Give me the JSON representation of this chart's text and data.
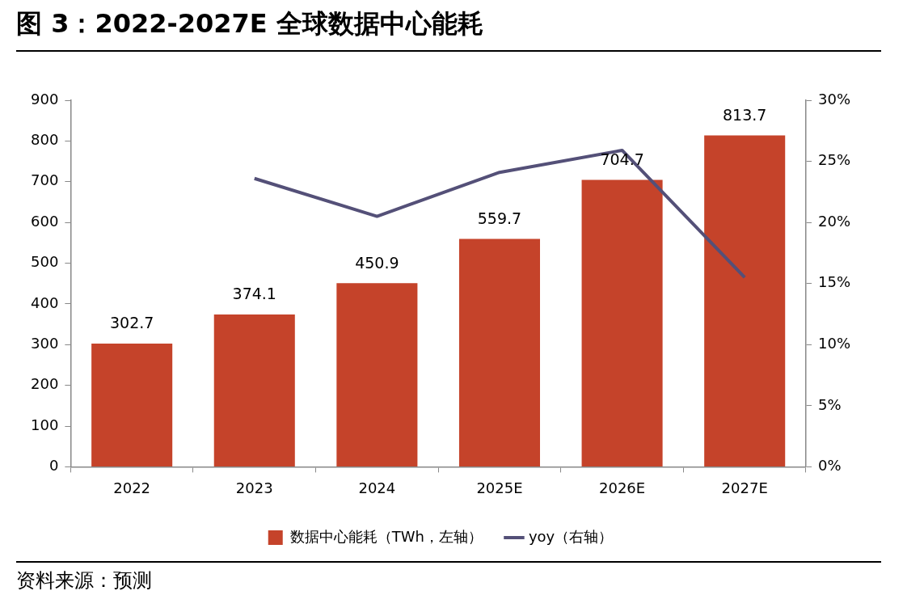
{
  "chart_data": {
    "type": "bar",
    "title": "图 3：2022-2027E 全球数据中心能耗",
    "categories": [
      "2022",
      "2023",
      "2024",
      "2025E",
      "2026E",
      "2027E"
    ],
    "series": [
      {
        "name": "数据中心能耗（TWh，左轴）",
        "color": "#c5432a",
        "values": [
          302.7,
          374.1,
          450.9,
          559.7,
          704.7,
          813.7
        ],
        "value_labels": [
          "302.7",
          "374.1",
          "450.9",
          "559.7",
          "704.7",
          "813.7"
        ]
      },
      {
        "name": "yoy（右轴）",
        "type": "line",
        "axis": "y2",
        "color": "#545078",
        "values": [
          null,
          23.6,
          20.5,
          24.1,
          25.9,
          15.5
        ]
      }
    ],
    "ylim": [
      0,
      900
    ],
    "yticks": [
      0,
      100,
      200,
      300,
      400,
      500,
      600,
      700,
      800,
      900
    ],
    "y2lim": [
      0,
      30
    ],
    "y2ticks": [
      {
        "value": 0,
        "label": "0%"
      },
      {
        "value": 5,
        "label": "5%"
      },
      {
        "value": 10,
        "label": "10%"
      },
      {
        "value": 15,
        "label": "15%"
      },
      {
        "value": 20,
        "label": "20%"
      },
      {
        "value": 25,
        "label": "25%"
      },
      {
        "value": 30,
        "label": "30%"
      }
    ],
    "grid": false,
    "legend": "bottom",
    "marker": "none",
    "line_style": "solid",
    "annotations": [
      "资料来源：预测"
    ]
  }
}
